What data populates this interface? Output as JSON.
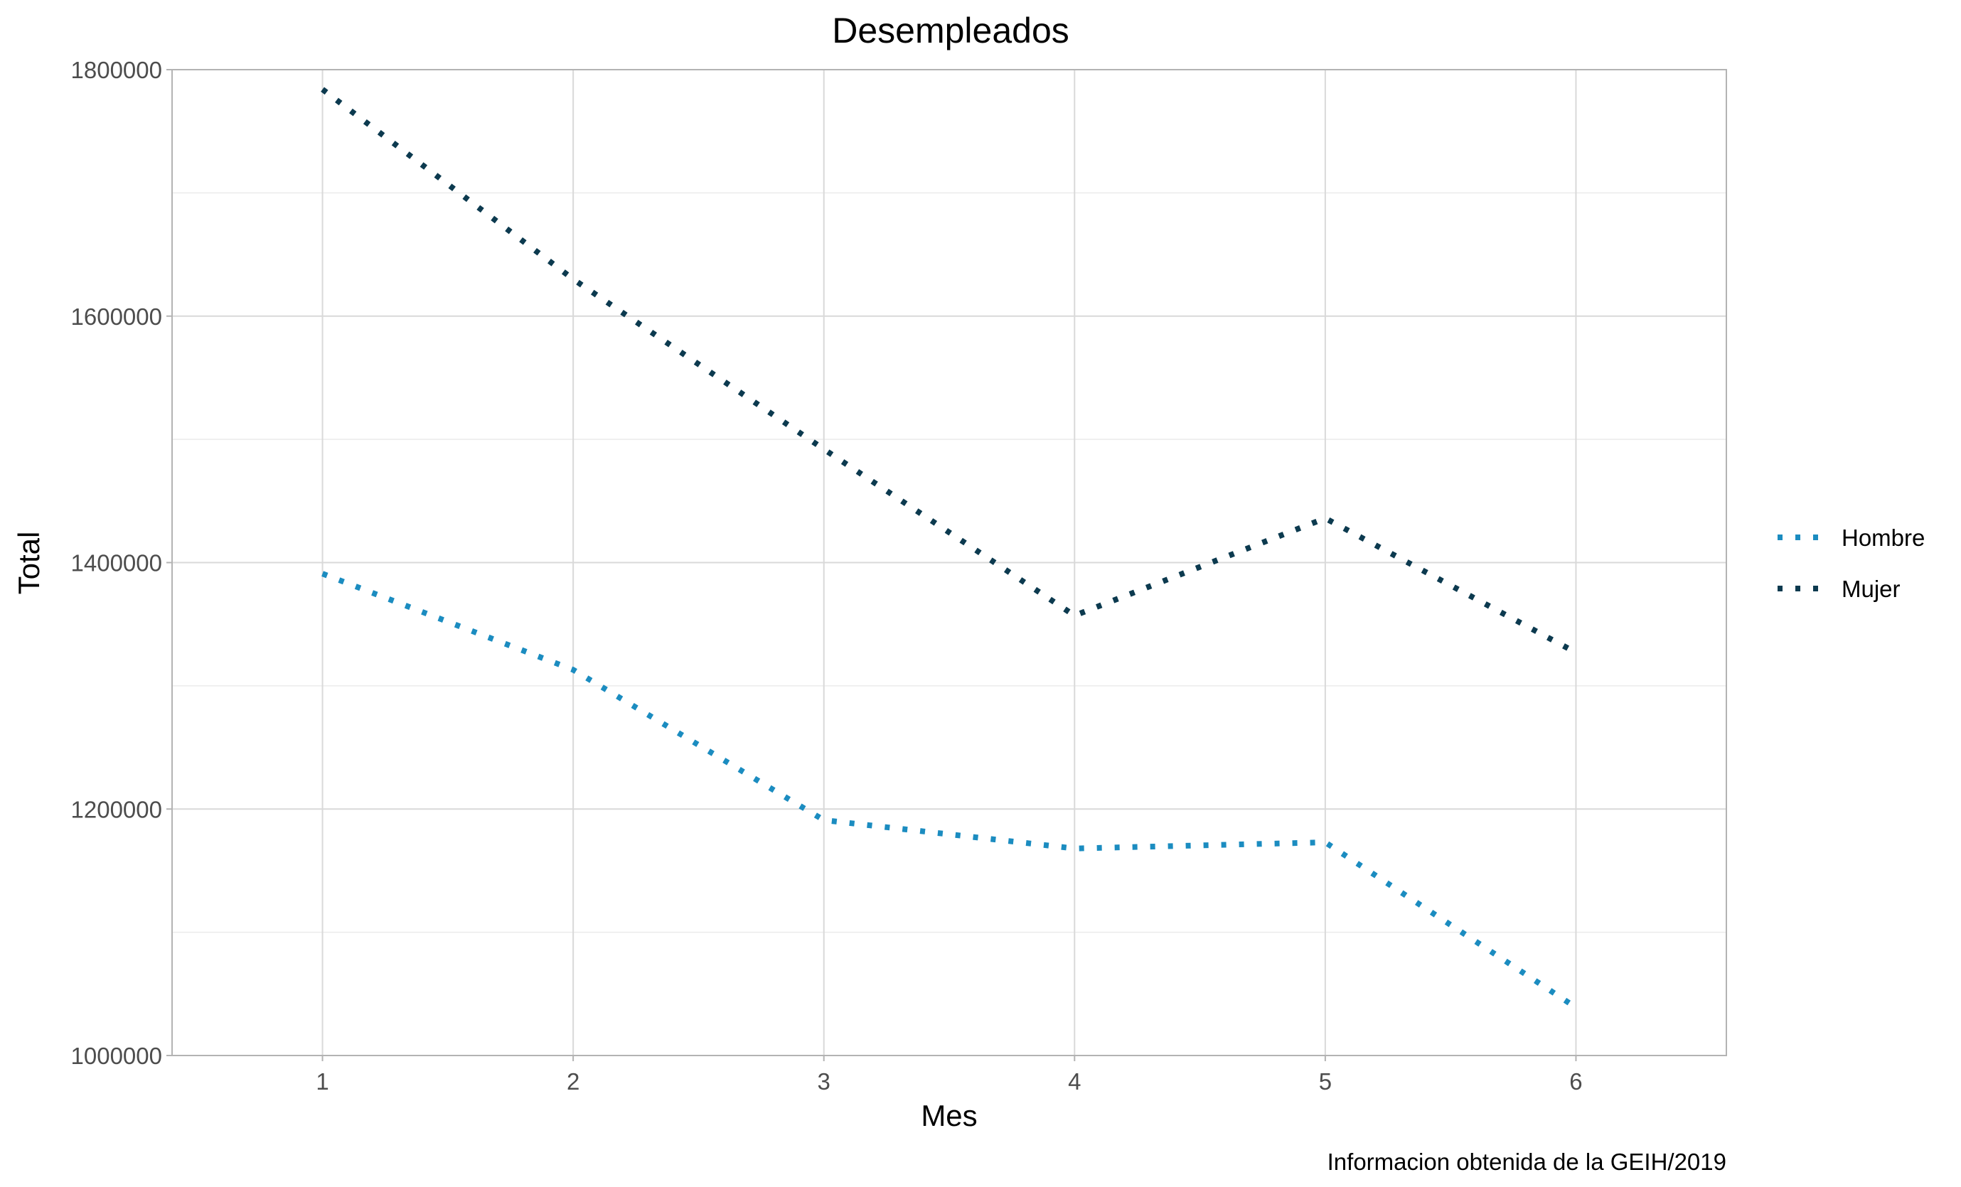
{
  "chart_data": {
    "type": "line",
    "title": "Desempleados",
    "xlabel": "Mes",
    "ylabel": "Total",
    "caption": "Informacion obtenida de la GEIH/2019",
    "x": [
      1,
      2,
      3,
      4,
      5,
      6
    ],
    "xlim": [
      0.4,
      6.6
    ],
    "ylim": [
      1000000,
      1800000
    ],
    "yticks": [
      1000000,
      1200000,
      1400000,
      1600000,
      1800000
    ],
    "grid": true,
    "legend_position": "right",
    "series": [
      {
        "name": "Hombre",
        "color": "#1b8cc0",
        "values": [
          1391000,
          1313000,
          1191000,
          1168000,
          1173000,
          1039000
        ]
      },
      {
        "name": "Mujer",
        "color": "#0c3a4f",
        "values": [
          1784000,
          1630000,
          1492000,
          1357000,
          1436000,
          1327000
        ]
      }
    ]
  }
}
